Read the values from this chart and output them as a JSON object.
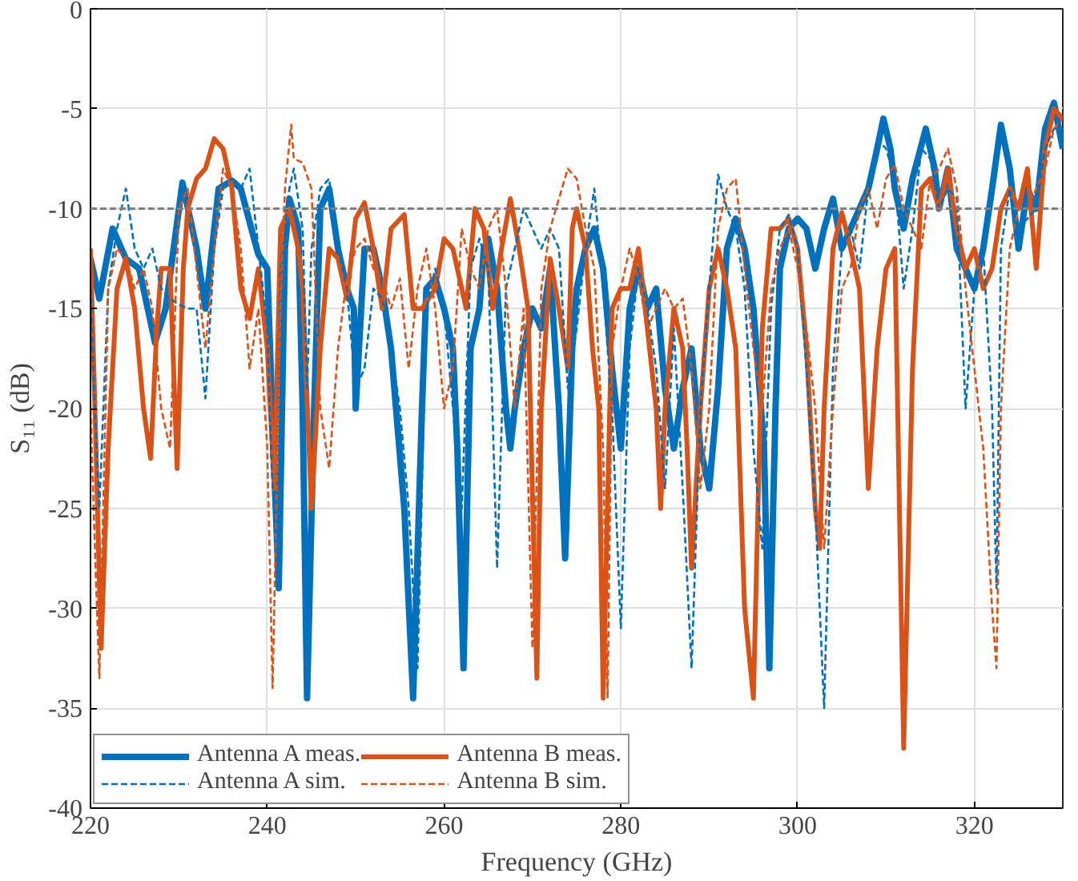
{
  "chart_data": {
    "type": "line",
    "xlabel": "Frequency (GHz)",
    "ylabel": "S₁₁ (dB)",
    "xlim": [
      220,
      330
    ],
    "ylim": [
      -40,
      0
    ],
    "xticks": [
      220,
      240,
      260,
      280,
      300,
      320
    ],
    "yticks": [
      -40,
      -35,
      -30,
      -25,
      -20,
      -15,
      -10,
      -5,
      0
    ],
    "grid": true,
    "legend": "bottom left",
    "ref_lines": [
      {
        "axis": "y",
        "value": -10,
        "color": "#808080",
        "line_style": "dashed"
      }
    ],
    "series": [
      {
        "name": "Antenna A meas.",
        "color": "#0072bd",
        "line_style": "solid",
        "x": [
          220,
          221,
          222.5,
          224,
          225.5,
          227.3,
          228.5,
          230.4,
          232,
          233,
          234.5,
          236,
          237,
          238.5,
          239,
          240,
          240.7,
          241.3,
          242,
          242.5,
          243.5,
          244,
          244.5,
          245.3,
          246,
          247,
          248,
          249,
          249.8,
          250,
          251,
          252,
          253,
          254,
          255.5,
          256.5,
          257.5,
          258,
          259,
          260,
          261,
          261.5,
          262.2,
          263,
          264,
          264.5,
          265,
          266,
          267,
          267.5,
          268,
          269,
          270,
          271,
          272,
          273,
          273.7,
          274.5,
          275,
          276,
          277,
          278,
          279,
          280,
          281,
          282,
          283,
          284,
          285,
          286,
          287,
          288,
          289,
          290,
          291,
          292,
          293,
          294,
          295,
          296.2,
          296.8,
          297.5,
          298,
          299,
          300,
          301,
          302,
          303,
          304,
          305,
          306,
          307,
          308,
          309,
          309.7,
          310.5,
          311,
          312,
          313,
          314.5,
          315.5,
          316,
          317,
          318,
          319,
          320,
          321,
          322,
          323,
          324,
          325,
          326,
          327,
          328,
          329,
          330
        ],
        "values": [
          -12.5,
          -14.5,
          -11,
          -12.5,
          -13,
          -16.7,
          -15,
          -8.7,
          -12,
          -15,
          -9,
          -8.6,
          -9,
          -11.5,
          -12.3,
          -13,
          -22,
          -29,
          -12,
          -9.5,
          -11,
          -20,
          -34.5,
          -20,
          -10,
          -9,
          -12,
          -14,
          -15,
          -20,
          -12,
          -12,
          -14,
          -17,
          -25,
          -34.5,
          -20,
          -14,
          -13.5,
          -15,
          -17,
          -22,
          -33,
          -17,
          -15,
          -12,
          -11.5,
          -14,
          -20,
          -22,
          -20,
          -17,
          -15,
          -16,
          -13,
          -20,
          -27.5,
          -17,
          -14,
          -12,
          -11,
          -13,
          -18,
          -22,
          -15,
          -13,
          -15,
          -14,
          -19,
          -22,
          -19,
          -17,
          -22,
          -24,
          -19,
          -12,
          -10.5,
          -12,
          -15,
          -22,
          -33,
          -20,
          -13,
          -11,
          -10.5,
          -11,
          -13,
          -11,
          -9.5,
          -12,
          -11,
          -10,
          -9,
          -7,
          -5.5,
          -7,
          -9,
          -11,
          -8.5,
          -6,
          -8,
          -10,
          -8,
          -12,
          -13,
          -14,
          -12,
          -9,
          -5.8,
          -8,
          -12,
          -9,
          -10,
          -6,
          -4.7,
          -7
        ]
      },
      {
        "name": "Antenna B meas.",
        "color": "#d95319",
        "line_style": "solid",
        "x": [
          220,
          220.5,
          221.2,
          222,
          223,
          224,
          225,
          226,
          226.8,
          227.5,
          228,
          229,
          229.8,
          230.5,
          231,
          232,
          233,
          234,
          235,
          236,
          237,
          238,
          239,
          240,
          240.8,
          241.5,
          242.5,
          243.5,
          244,
          245,
          246,
          247,
          248,
          249,
          250,
          251,
          252,
          253,
          254,
          255.5,
          256.5,
          257.5,
          259,
          260,
          261,
          262.5,
          263.5,
          264.5,
          265.5,
          266.5,
          267.5,
          268.5,
          269.5,
          270.5,
          271,
          272,
          273,
          274,
          274.5,
          275,
          276,
          276.8,
          277.5,
          278,
          279,
          280,
          281,
          282,
          283,
          284,
          284.5,
          285,
          286,
          287,
          287.5,
          288,
          289,
          290,
          291,
          292,
          293,
          294,
          295,
          296,
          297,
          298,
          299,
          300,
          301,
          302,
          302.5,
          303,
          304,
          305,
          306,
          307,
          308,
          309,
          310,
          311,
          312,
          313,
          314,
          315,
          316,
          317,
          318,
          319,
          320,
          321,
          322,
          323,
          324,
          325,
          326,
          327,
          328,
          329,
          330
        ],
        "values": [
          -12,
          -20,
          -32,
          -22,
          -14,
          -12.5,
          -15,
          -20,
          -22.5,
          -16,
          -13,
          -13,
          -23,
          -13,
          -10,
          -8.5,
          -8,
          -6.5,
          -7,
          -9,
          -14,
          -15.5,
          -13,
          -17,
          -24,
          -11,
          -10,
          -12,
          -14,
          -25,
          -17,
          -12,
          -12.5,
          -14.5,
          -10.5,
          -9.7,
          -12,
          -15,
          -11,
          -10.3,
          -15,
          -15,
          -14,
          -11.5,
          -12,
          -15,
          -10,
          -11,
          -15,
          -12,
          -9.5,
          -12,
          -15,
          -33.5,
          -20,
          -12.5,
          -15,
          -18,
          -11,
          -10,
          -12,
          -17,
          -20,
          -34.5,
          -15,
          -14,
          -14,
          -12,
          -16,
          -20,
          -25,
          -20,
          -15,
          -17,
          -22,
          -28,
          -20,
          -14,
          -12,
          -14,
          -17,
          -30,
          -34.5,
          -16,
          -11,
          -11,
          -10.5,
          -12,
          -17,
          -25,
          -27,
          -20,
          -12,
          -10.2,
          -12,
          -14,
          -24,
          -17,
          -13,
          -12,
          -37,
          -18,
          -9,
          -8.5,
          -10,
          -8,
          -11,
          -13,
          -12,
          -14,
          -13,
          -10,
          -9,
          -10,
          -8,
          -13,
          -7,
          -5,
          -5.5
        ]
      },
      {
        "name": "Antenna A sim.",
        "color": "#0072bd",
        "line_style": "dashed",
        "x": [
          220,
          220.5,
          221,
          222,
          223,
          224,
          225,
          226,
          227,
          228,
          229,
          230,
          231,
          232,
          233,
          234,
          235,
          236,
          237,
          238,
          239,
          240,
          240.5,
          241,
          241.5,
          242.5,
          243,
          244,
          244.5,
          245,
          246,
          247,
          248,
          249,
          250,
          251,
          252,
          253,
          254,
          255,
          256,
          257,
          258,
          259,
          260,
          261,
          262,
          263,
          264,
          265,
          266,
          267,
          268,
          269,
          270,
          271,
          272,
          273,
          274,
          275,
          276,
          277,
          278,
          279,
          280,
          281,
          282,
          283,
          284,
          285,
          286,
          287,
          288,
          289,
          290,
          291,
          292,
          293,
          294,
          295,
          296,
          297,
          298,
          299,
          300,
          301,
          302,
          303,
          304,
          305,
          306,
          307,
          308,
          309,
          310,
          311,
          312,
          313,
          314,
          315,
          316,
          317,
          318,
          319,
          320,
          321,
          322,
          322.5,
          323,
          324,
          325,
          326,
          327,
          328,
          329,
          330
        ],
        "values": [
          -14,
          -20,
          -25,
          -14,
          -11,
          -9,
          -12,
          -13,
          -12,
          -14,
          -14.5,
          -14.8,
          -15,
          -15,
          -19.5,
          -12,
          -9,
          -8.5,
          -9,
          -8,
          -12,
          -16,
          -23,
          -27,
          -13,
          -9,
          -8,
          -11,
          -19,
          -12,
          -9,
          -8.5,
          -12,
          -14,
          -19,
          -18,
          -14,
          -14.5,
          -17,
          -20,
          -25,
          -33,
          -15,
          -13,
          -15,
          -20,
          -25,
          -13,
          -11.5,
          -13,
          -28,
          -14,
          -12,
          -10,
          -11,
          -12,
          -11,
          -12,
          -19,
          -16,
          -12,
          -9,
          -14,
          -20,
          -31,
          -17,
          -13,
          -15,
          -18,
          -24,
          -16,
          -24,
          -33,
          -20,
          -14,
          -8.3,
          -10,
          -11,
          -14,
          -22,
          -27,
          -15,
          -11,
          -10.3,
          -12,
          -18,
          -25,
          -35,
          -18,
          -12,
          -11,
          -13,
          -9,
          -6.5,
          -7,
          -8.5,
          -14,
          -11,
          -7,
          -7.5,
          -10,
          -9,
          -9.5,
          -20,
          -14,
          -12,
          -20,
          -29,
          -12,
          -9,
          -11,
          -10.5,
          -10,
          -7,
          -6,
          -6
        ]
      },
      {
        "name": "Antenna B sim.",
        "color": "#d95319",
        "line_style": "dashed",
        "x": [
          220,
          220.5,
          221,
          222,
          223,
          224,
          225,
          226,
          227,
          228,
          229,
          230,
          231,
          232,
          233,
          234,
          235,
          236,
          237,
          238,
          239,
          240,
          240.6,
          241.5,
          242,
          242.7,
          243,
          244,
          245,
          246,
          247,
          248,
          249,
          250,
          251,
          252,
          253,
          254,
          255,
          256,
          257,
          258,
          259,
          260,
          261,
          262,
          263,
          264,
          265,
          266,
          267,
          268,
          269,
          270,
          271,
          272,
          273,
          274,
          275,
          276,
          277,
          278,
          278.5,
          279,
          280,
          281,
          282,
          283,
          284,
          285,
          286,
          287,
          288,
          289,
          290,
          291,
          292,
          293,
          294,
          295,
          296,
          297,
          298,
          299,
          300,
          301,
          302,
          303,
          304,
          305,
          306,
          307,
          308,
          309,
          310,
          311,
          312,
          313,
          314,
          315,
          316,
          317,
          318,
          319,
          320,
          321,
          322,
          322.5,
          323,
          324,
          325,
          326,
          327,
          328,
          329,
          330
        ],
        "values": [
          -20,
          -27,
          -33.5,
          -14,
          -12,
          -12.5,
          -14,
          -13,
          -15,
          -20,
          -22,
          -10,
          -9,
          -13,
          -17,
          -12,
          -8,
          -9,
          -12,
          -18,
          -15,
          -22,
          -34,
          -15,
          -9,
          -5.8,
          -7.5,
          -7.7,
          -9,
          -20,
          -23,
          -17,
          -13.5,
          -12,
          -11.5,
          -13,
          -13.5,
          -15,
          -13.5,
          -18,
          -14,
          -12,
          -15,
          -20,
          -18,
          -11,
          -13,
          -14,
          -11,
          -10,
          -14,
          -20,
          -15,
          -32,
          -14,
          -11,
          -9.5,
          -8,
          -8.5,
          -11,
          -13,
          -22,
          -34.5,
          -17,
          -14,
          -12,
          -13.5,
          -16,
          -15,
          -14,
          -15,
          -14.5,
          -18,
          -24,
          -20,
          -11,
          -9,
          -8.5,
          -13,
          -17,
          -20,
          -14,
          -12,
          -11,
          -13,
          -16,
          -20,
          -27,
          -20,
          -14,
          -13,
          -10,
          -9,
          -11,
          -8.5,
          -7.8,
          -10,
          -11,
          -12,
          -8.5,
          -8,
          -7,
          -9,
          -14,
          -18,
          -22,
          -30,
          -33,
          -20,
          -12,
          -10,
          -10,
          -9,
          -8,
          -6,
          -5.5
        ]
      }
    ]
  }
}
